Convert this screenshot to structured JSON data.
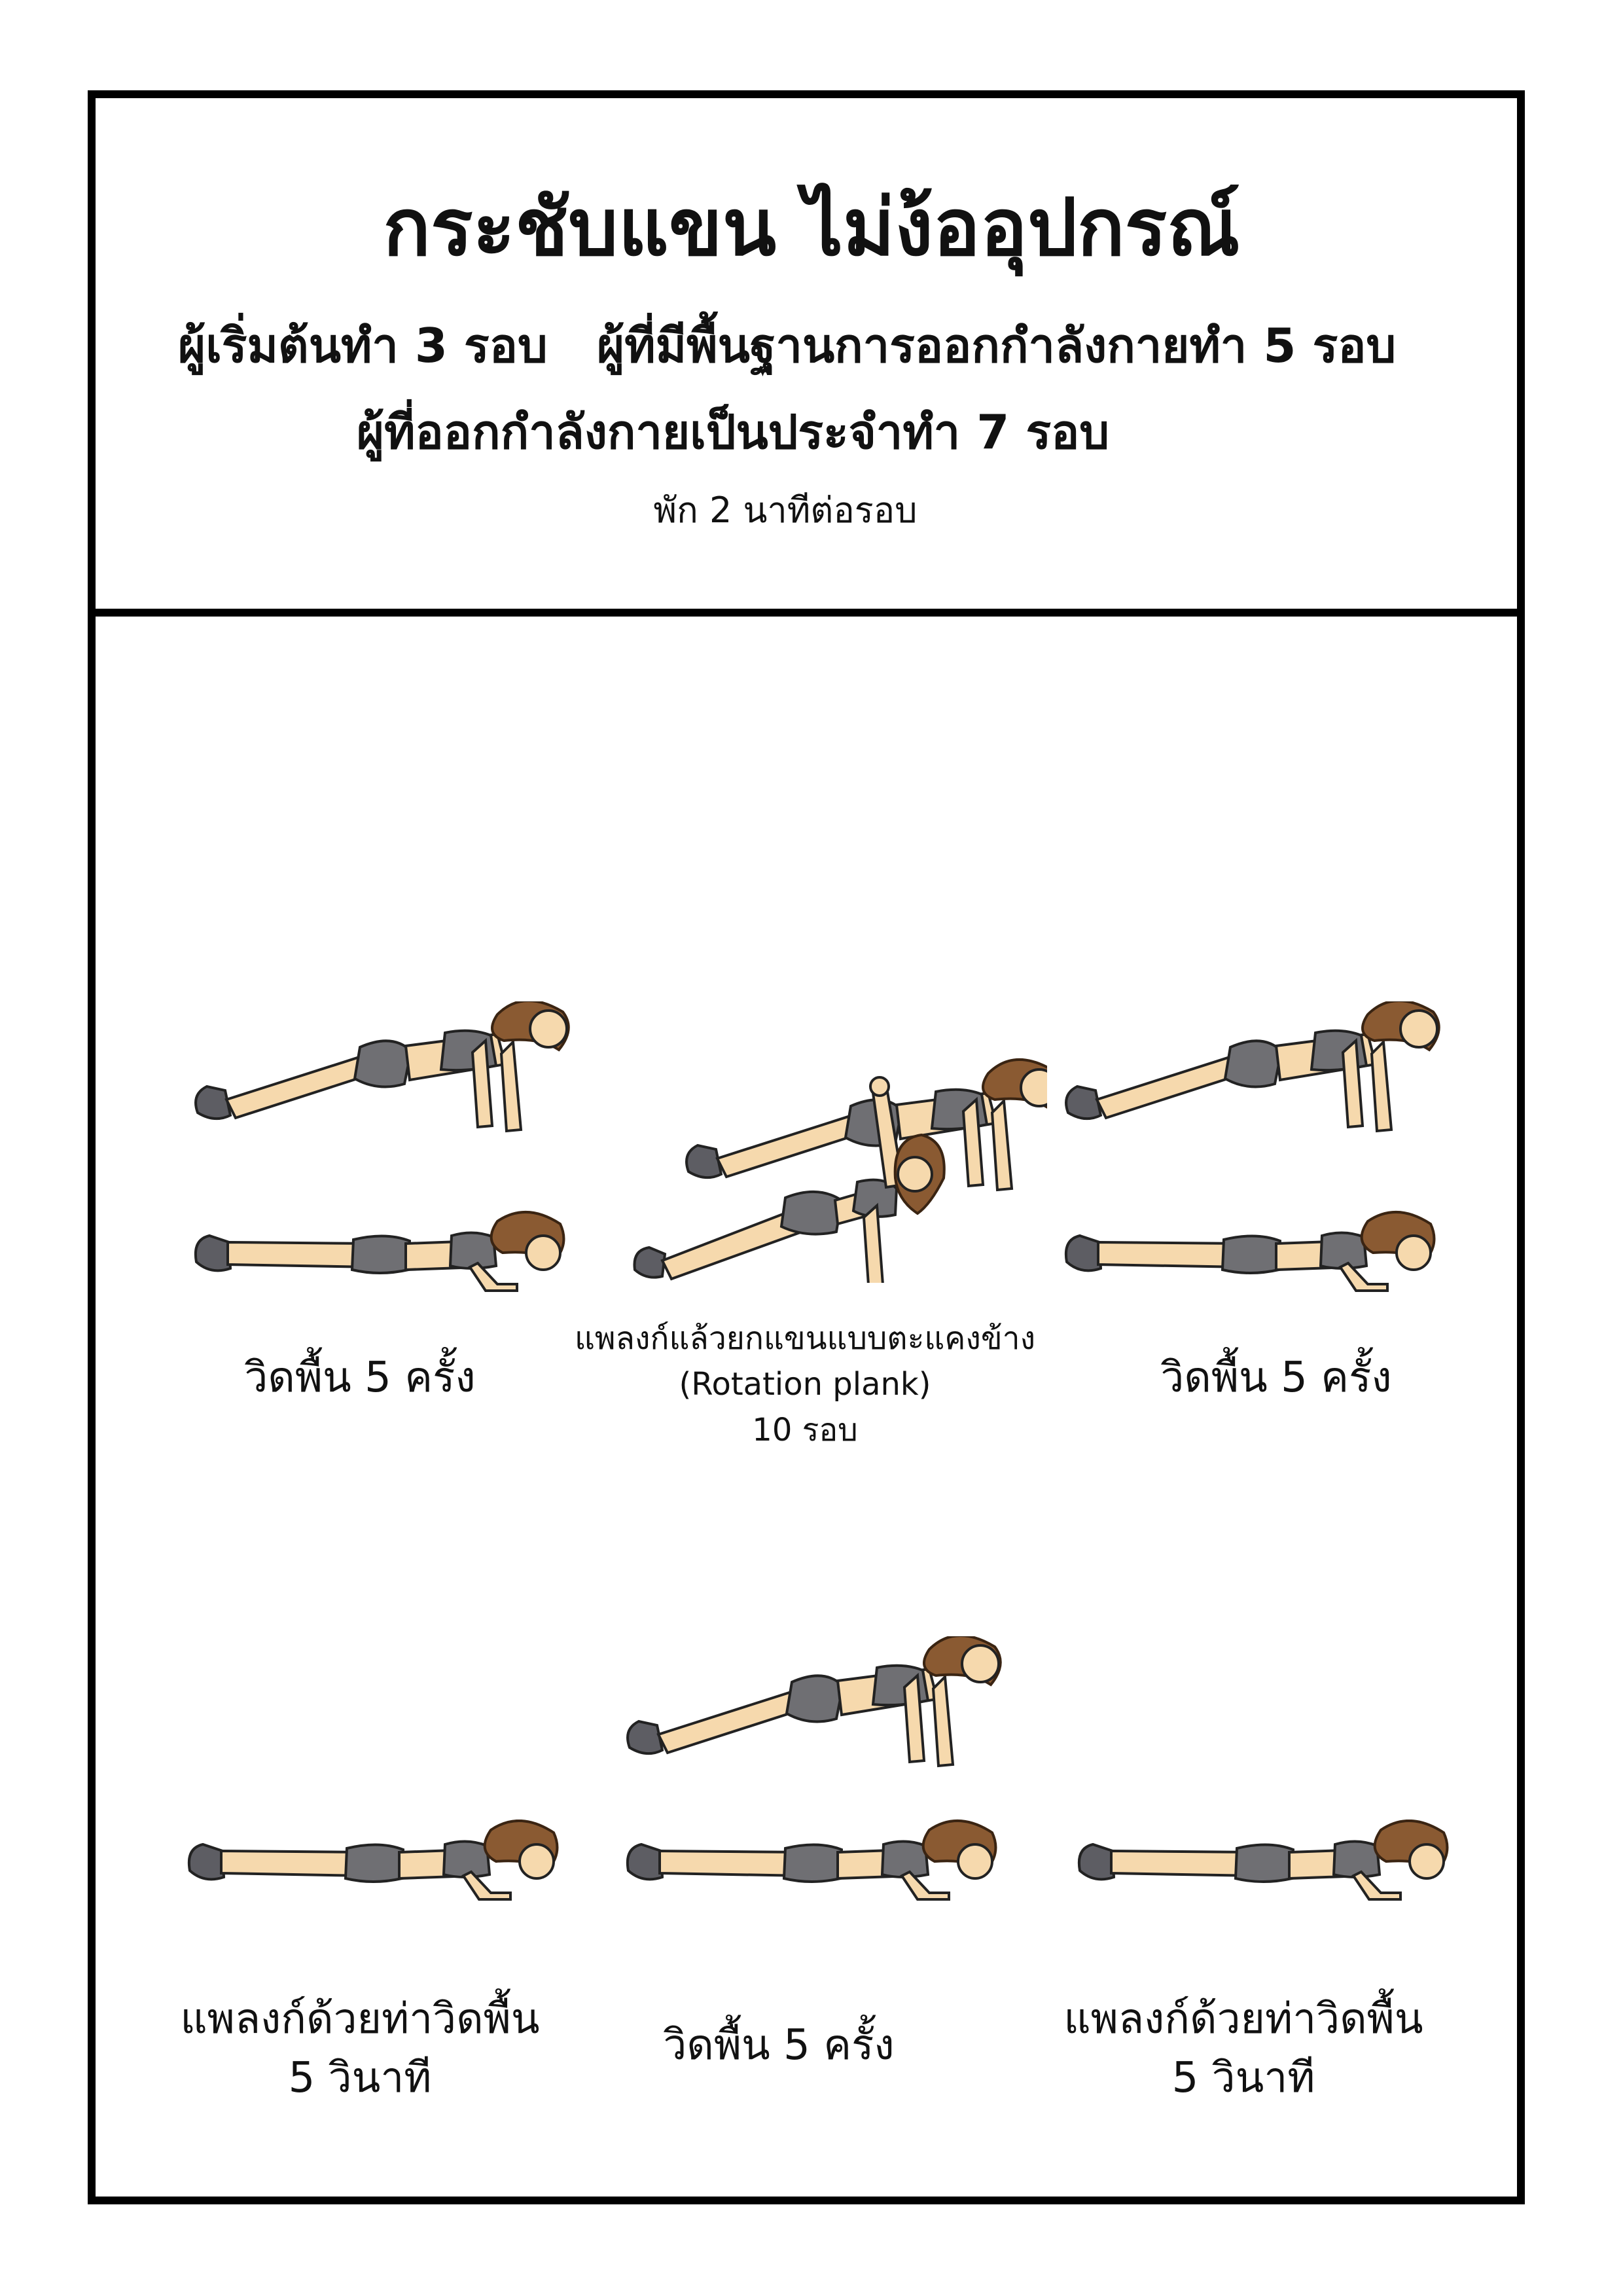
{
  "header": {
    "title": "กระชับแขน ไม่ง้ออุปกรณ์",
    "beginner": "ผู้เริ่มต้นทำ 3 รอบ",
    "intermediate": "ผู้ที่มีพื้นฐานการออกกำลังกายทำ 5 รอบ",
    "regular": "ผู้ที่ออกกำลังกายเป็นประจำทำ 7 รอบ",
    "rest": "พัก 2 นาทีต่อรอบ"
  },
  "exercises": [
    {
      "lines": [
        "วิดพื้น 5 ครั้ง"
      ]
    },
    {
      "lines": [
        "แพลงก์แล้วยกแขนแบบตะแคงข้าง",
        "(Rotation plank)",
        "10 รอบ"
      ]
    },
    {
      "lines": [
        "วิดพื้น 5 ครั้ง"
      ]
    },
    {
      "lines": [
        "แพลงก์ด้วยท่าวิดพื้น",
        "5 วินาที"
      ]
    },
    {
      "lines": [
        "วิดพื้น 5 ครั้ง"
      ]
    },
    {
      "lines": [
        "แพลงก์ด้วยท่าวิดพื้น",
        "5 วินาที"
      ]
    }
  ],
  "icons": {
    "pushup_up": "pushup-high-position-icon",
    "pushup_down": "pushup-low-position-icon",
    "side_plank": "side-plank-rotation-icon"
  }
}
